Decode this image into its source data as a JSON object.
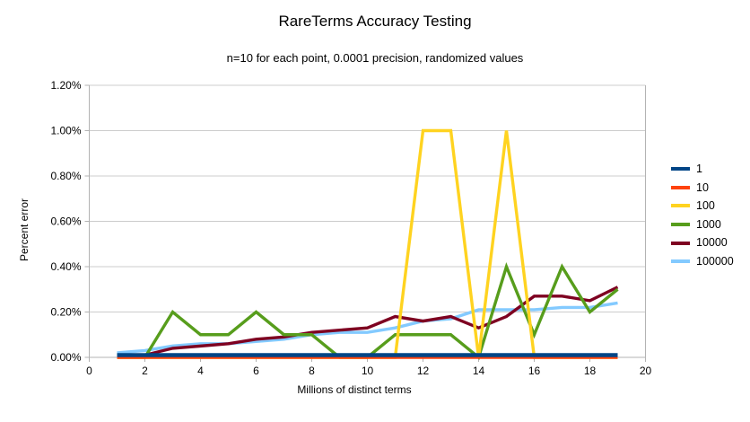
{
  "chart_data": {
    "type": "line",
    "title": "RareTerms Accuracy Testing",
    "subtitle": "n=10 for each point, 0.0001 precision, randomized values",
    "xlabel": "Millions of distinct terms",
    "ylabel": "Percent error",
    "xlim": [
      0,
      20
    ],
    "ylim_percent": [
      0,
      1.2
    ],
    "grid": "horizontal",
    "legend_position": "right",
    "x_ticks": [
      0,
      2,
      4,
      6,
      8,
      10,
      12,
      14,
      16,
      18,
      20
    ],
    "y_ticks": [
      0,
      0.2,
      0.4,
      0.6,
      0.8,
      1.0,
      1.2
    ],
    "y_tick_labels": [
      "0.00%",
      "0.20%",
      "0.40%",
      "0.60%",
      "0.80%",
      "1.00%",
      "1.20%"
    ],
    "x": [
      1,
      2,
      3,
      4,
      5,
      6,
      7,
      8,
      9,
      10,
      11,
      12,
      13,
      14,
      15,
      16,
      17,
      18,
      19
    ],
    "series": [
      {
        "name": "1",
        "color": "#004586",
        "values_percent": [
          0.01,
          0.01,
          0.01,
          0.01,
          0.01,
          0.01,
          0.01,
          0.01,
          0.01,
          0.01,
          0.01,
          0.01,
          0.01,
          0.01,
          0.01,
          0.01,
          0.01,
          0.01,
          0.01
        ]
      },
      {
        "name": "10",
        "color": "#ff420e",
        "values_percent": [
          0,
          0,
          0,
          0,
          0,
          0,
          0,
          0,
          0,
          0,
          0,
          0,
          0,
          0,
          0,
          0,
          0,
          0,
          0
        ]
      },
      {
        "name": "100",
        "color": "#ffd320",
        "values_percent": [
          0,
          0,
          0,
          0,
          0,
          0,
          0,
          0,
          0,
          0,
          0,
          1.0,
          1.0,
          0,
          1.0,
          0,
          0,
          0,
          0
        ]
      },
      {
        "name": "1000",
        "color": "#579d1c",
        "values_percent": [
          0,
          0,
          0.2,
          0.1,
          0.1,
          0.2,
          0.1,
          0.1,
          0,
          0,
          0.1,
          0.1,
          0.1,
          0,
          0.4,
          0.1,
          0.4,
          0.2,
          0.3
        ]
      },
      {
        "name": "10000",
        "color": "#7e0021",
        "values_percent": [
          0.01,
          0.01,
          0.04,
          0.05,
          0.06,
          0.08,
          0.09,
          0.11,
          0.12,
          0.13,
          0.18,
          0.16,
          0.18,
          0.13,
          0.18,
          0.27,
          0.27,
          0.25,
          0.31
        ]
      },
      {
        "name": "100000",
        "color": "#83caff",
        "values_percent": [
          0.02,
          0.03,
          0.05,
          0.06,
          0.06,
          0.07,
          0.08,
          0.1,
          0.11,
          0.11,
          0.13,
          0.16,
          0.17,
          0.21,
          0.21,
          0.21,
          0.22,
          0.22,
          0.24
        ]
      }
    ],
    "style": {
      "grid_color": "#cccccc",
      "axis_color": "#b3b3b3",
      "text_color": "#000000",
      "background": "#ffffff"
    }
  }
}
